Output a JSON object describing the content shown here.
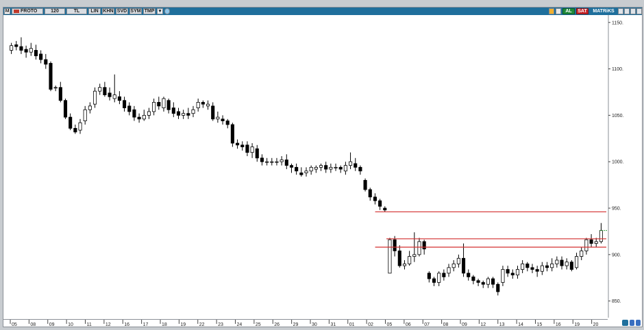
{
  "toolbar": {
    "mode": "M",
    "symbol": "FROTO",
    "period": "120",
    "currency": "TL",
    "buttons": [
      "LIN",
      "KHN",
      "SVD",
      "SYM",
      "TMP"
    ],
    "buy_label": "AL",
    "sell_label": "SAT",
    "template": "MATRiKS"
  },
  "colors": {
    "toolbar_bg": "#1f6f9c",
    "support_line": "#d32f2f",
    "last_price_marker": "#2e9e3a",
    "buy": "#1e8a3a",
    "sell": "#c8262a"
  },
  "chart_data": {
    "type": "candlestick",
    "y_ticks": [
      "1150.",
      "1100.",
      "1050.",
      "1000.",
      "950.",
      "900.",
      "850."
    ],
    "ylim": [
      835,
      1155
    ],
    "x_tick_labels": [
      "05",
      "08",
      "09",
      "10",
      "11",
      "12",
      "16",
      "17",
      "18",
      "19",
      "22",
      "23",
      "24",
      "25",
      "26",
      "29",
      "30",
      "31",
      "01",
      "02",
      "05",
      "06",
      "07",
      "08",
      "09",
      "12",
      "13",
      "14",
      "15",
      "16",
      "19",
      "20"
    ],
    "horizontal_lines": [
      {
        "price": 946,
        "from_tick": 19.6
      },
      {
        "price": 917,
        "from_tick": 20.2
      },
      {
        "price": 908,
        "from_tick": 19.6
      }
    ],
    "candles": [
      [
        1120,
        1125,
        1128,
        1116
      ],
      [
        1126,
        1124,
        1130,
        1120
      ],
      [
        1124,
        1120,
        1134,
        1116
      ],
      [
        1121,
        1118,
        1125,
        1112
      ],
      [
        1118,
        1122,
        1128,
        1114
      ],
      [
        1120,
        1114,
        1126,
        1110
      ],
      [
        1116,
        1110,
        1120,
        1106
      ],
      [
        1110,
        1105,
        1116,
        1100
      ],
      [
        1106,
        1078,
        1108,
        1076
      ],
      [
        1080,
        1080,
        1082,
        1076
      ],
      [
        1080,
        1066,
        1086,
        1064
      ],
      [
        1066,
        1048,
        1068,
        1046
      ],
      [
        1048,
        1036,
        1052,
        1034
      ],
      [
        1036,
        1032,
        1040,
        1030
      ],
      [
        1034,
        1042,
        1046,
        1030
      ],
      [
        1044,
        1056,
        1060,
        1040
      ],
      [
        1056,
        1060,
        1064,
        1052
      ],
      [
        1062,
        1076,
        1080,
        1058
      ],
      [
        1076,
        1080,
        1084,
        1072
      ],
      [
        1080,
        1072,
        1086,
        1070
      ],
      [
        1074,
        1070,
        1080,
        1066
      ],
      [
        1068,
        1072,
        1094,
        1064
      ],
      [
        1070,
        1066,
        1076,
        1062
      ],
      [
        1066,
        1058,
        1070,
        1054
      ],
      [
        1060,
        1054,
        1064,
        1050
      ],
      [
        1056,
        1048,
        1060,
        1044
      ],
      [
        1048,
        1046,
        1052,
        1042
      ],
      [
        1046,
        1050,
        1056,
        1044
      ],
      [
        1050,
        1054,
        1058,
        1046
      ],
      [
        1054,
        1064,
        1068,
        1050
      ],
      [
        1064,
        1060,
        1070,
        1056
      ],
      [
        1058,
        1068,
        1070,
        1054
      ],
      [
        1066,
        1056,
        1068,
        1052
      ],
      [
        1058,
        1052,
        1064,
        1048
      ],
      [
        1054,
        1050,
        1058,
        1046
      ],
      [
        1050,
        1052,
        1056,
        1046
      ],
      [
        1052,
        1050,
        1058,
        1046
      ],
      [
        1052,
        1056,
        1060,
        1048
      ],
      [
        1058,
        1064,
        1068,
        1054
      ],
      [
        1064,
        1062,
        1066,
        1058
      ],
      [
        1060,
        1062,
        1066,
        1056
      ],
      [
        1060,
        1046,
        1064,
        1044
      ],
      [
        1046,
        1048,
        1054,
        1042
      ],
      [
        1046,
        1044,
        1050,
        1040
      ],
      [
        1044,
        1040,
        1046,
        1036
      ],
      [
        1040,
        1020,
        1042,
        1016
      ],
      [
        1020,
        1018,
        1024,
        1014
      ],
      [
        1018,
        1016,
        1022,
        1012
      ],
      [
        1018,
        1010,
        1022,
        1006
      ],
      [
        1010,
        1016,
        1020,
        1004
      ],
      [
        1014,
        1004,
        1018,
        1000
      ],
      [
        1004,
        1000,
        1008,
        996
      ],
      [
        1000,
        1000,
        1004,
        996
      ],
      [
        1000,
        1000,
        1004,
        996
      ],
      [
        1000,
        1000,
        1004,
        996
      ],
      [
        1000,
        1002,
        1006,
        996
      ],
      [
        1002,
        996,
        1008,
        992
      ],
      [
        996,
        994,
        998,
        988
      ],
      [
        994,
        990,
        998,
        986
      ],
      [
        988,
        986,
        994,
        984
      ],
      [
        988,
        990,
        994,
        984
      ],
      [
        990,
        994,
        996,
        986
      ],
      [
        992,
        994,
        996,
        988
      ],
      [
        994,
        996,
        998,
        990
      ],
      [
        996,
        992,
        1000,
        988
      ],
      [
        992,
        994,
        998,
        988
      ],
      [
        994,
        994,
        998,
        990
      ],
      [
        994,
        992,
        996,
        988
      ],
      [
        990,
        996,
        1000,
        986
      ],
      [
        996,
        1000,
        1010,
        992
      ],
      [
        998,
        994,
        1004,
        990
      ],
      [
        994,
        990,
        996,
        986
      ],
      [
        980,
        970,
        982,
        968
      ],
      [
        970,
        962,
        972,
        958
      ],
      [
        962,
        958,
        966,
        954
      ],
      [
        958,
        952,
        960,
        948
      ],
      [
        950,
        948,
        952,
        946
      ],
      [
        880,
        916,
        918,
        880
      ],
      [
        916,
        904,
        920,
        898
      ],
      [
        904,
        888,
        910,
        886
      ],
      [
        888,
        890,
        894,
        884
      ],
      [
        890,
        898,
        904,
        888
      ],
      [
        898,
        900,
        924,
        892
      ],
      [
        900,
        914,
        918,
        898
      ],
      [
        914,
        906,
        916,
        900
      ],
      [
        880,
        874,
        882,
        870
      ],
      [
        874,
        870,
        876,
        866
      ],
      [
        870,
        880,
        882,
        866
      ],
      [
        880,
        876,
        884,
        872
      ],
      [
        880,
        886,
        890,
        876
      ],
      [
        886,
        890,
        894,
        882
      ],
      [
        890,
        896,
        900,
        886
      ],
      [
        896,
        880,
        912,
        876
      ],
      [
        880,
        876,
        884,
        872
      ],
      [
        876,
        872,
        878,
        868
      ],
      [
        872,
        870,
        874,
        866
      ],
      [
        870,
        868,
        872,
        864
      ],
      [
        868,
        874,
        876,
        864
      ],
      [
        874,
        868,
        876,
        864
      ],
      [
        868,
        860,
        870,
        856
      ],
      [
        870,
        884,
        888,
        866
      ],
      [
        884,
        880,
        888,
        876
      ],
      [
        880,
        878,
        884,
        874
      ],
      [
        878,
        884,
        888,
        874
      ],
      [
        884,
        890,
        894,
        880
      ],
      [
        890,
        886,
        892,
        882
      ],
      [
        886,
        884,
        890,
        880
      ],
      [
        884,
        882,
        888,
        876
      ],
      [
        882,
        888,
        892,
        878
      ],
      [
        888,
        886,
        892,
        882
      ],
      [
        886,
        890,
        896,
        882
      ],
      [
        890,
        894,
        898,
        886
      ],
      [
        894,
        888,
        898,
        884
      ],
      [
        888,
        892,
        896,
        884
      ],
      [
        892,
        884,
        894,
        882
      ],
      [
        886,
        898,
        902,
        884
      ],
      [
        898,
        904,
        908,
        894
      ],
      [
        904,
        916,
        918,
        900
      ],
      [
        916,
        912,
        922,
        908
      ],
      [
        912,
        914,
        918,
        908
      ],
      [
        914,
        926,
        934,
        912
      ]
    ]
  }
}
